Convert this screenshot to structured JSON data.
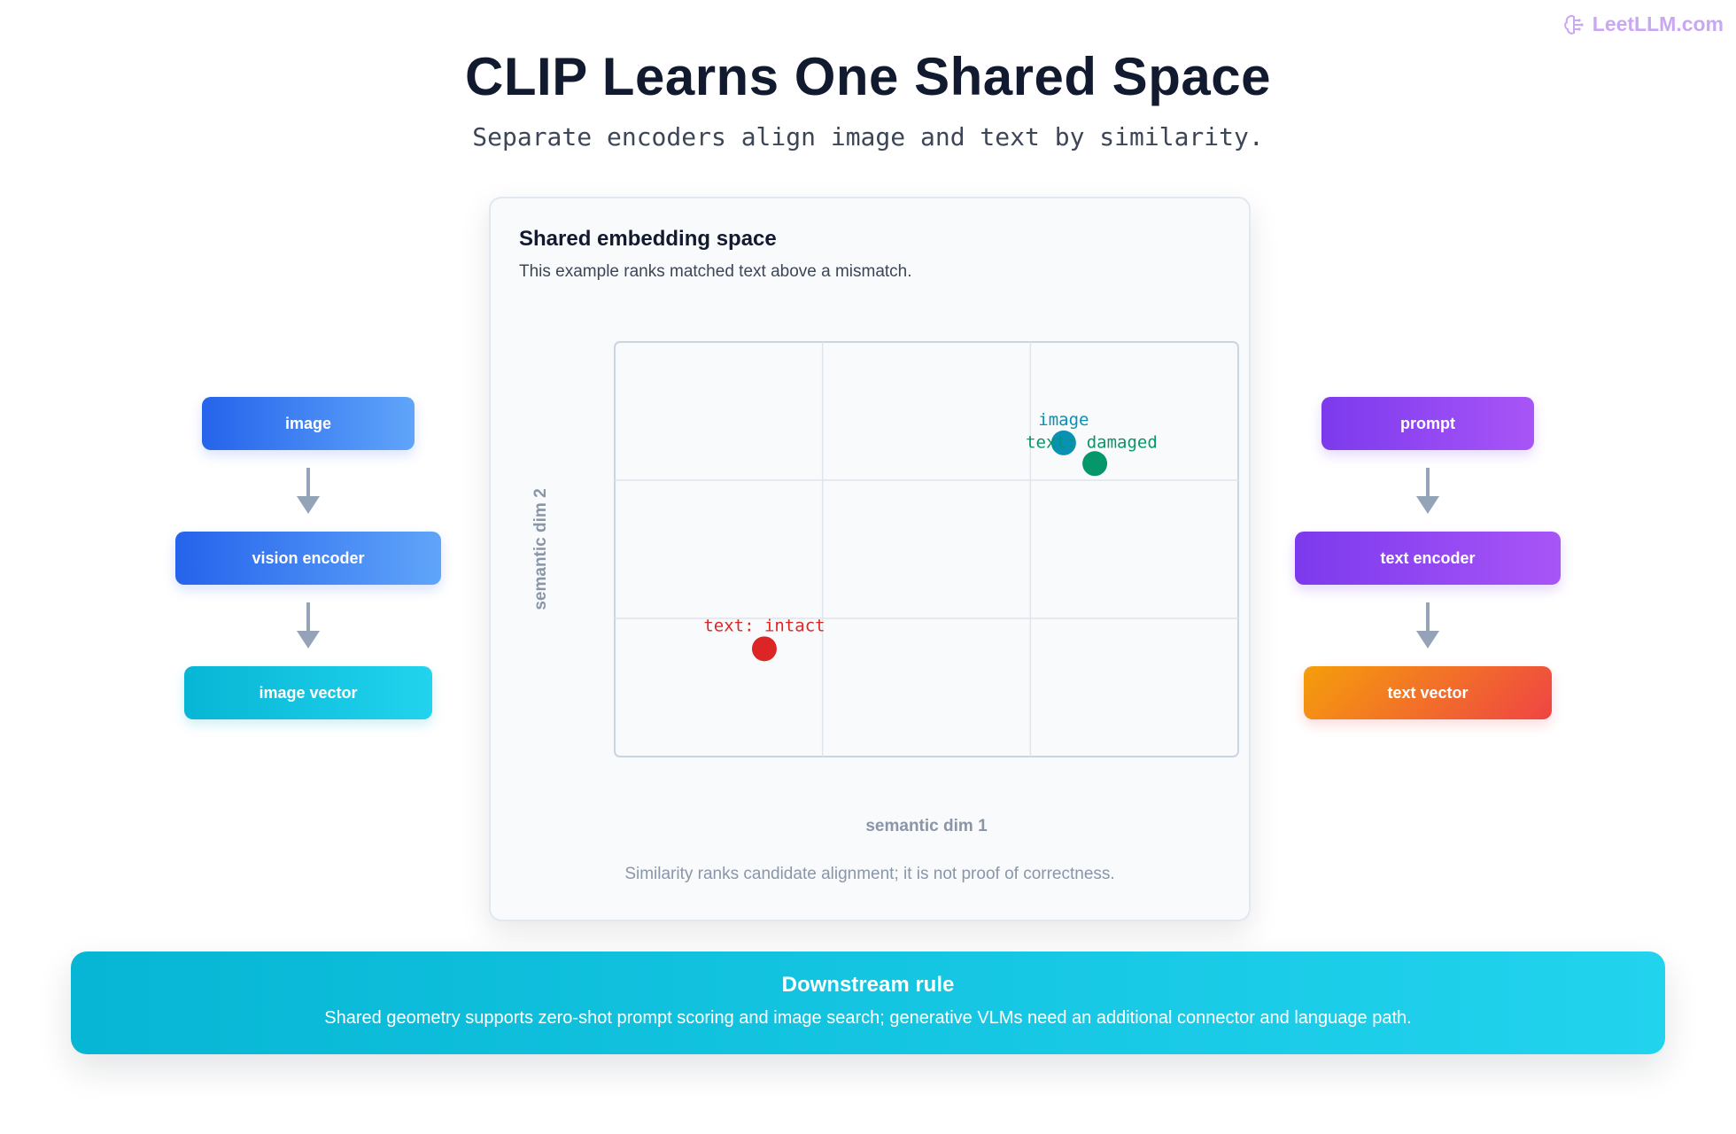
{
  "brand": {
    "text": "LeetLLM.com",
    "icon": "brain-icon"
  },
  "header": {
    "title": "CLIP Learns One Shared Space",
    "subtitle": "Separate encoders align image and text by similarity."
  },
  "left_pipeline": {
    "steps": [
      "image",
      "vision encoder",
      "image vector"
    ],
    "colors": [
      "#2563eb",
      "#2563eb",
      "#06b6d4"
    ]
  },
  "right_pipeline": {
    "steps": [
      "prompt",
      "text encoder",
      "text vector"
    ],
    "colors": [
      "#7c3aed",
      "#7c3aed",
      "#f59e0b"
    ]
  },
  "panel": {
    "title": "Shared embedding space",
    "description": "This example ranks matched text above a mismatch.",
    "note": "Similarity ranks candidate alignment; it is not proof of correctness."
  },
  "chart_data": {
    "type": "scatter",
    "xlabel": "semantic dim 1",
    "ylabel": "semantic dim 2",
    "xlim": [
      0,
      3
    ],
    "ylim": [
      0,
      3
    ],
    "grid": true,
    "points": [
      {
        "label": "image",
        "x": 2.16,
        "y": 2.27,
        "color": "#0891b2"
      },
      {
        "label": "text: damaged",
        "x": 2.31,
        "y": 2.12,
        "color": "#059669"
      },
      {
        "label": "text: intact",
        "x": 0.72,
        "y": 0.78,
        "color": "#dc2626"
      }
    ]
  },
  "downstream_rule": {
    "title": "Downstream rule",
    "text": "Shared geometry supports zero-shot prompt scoring and image search; generative VLMs need an additional connector and language path."
  }
}
